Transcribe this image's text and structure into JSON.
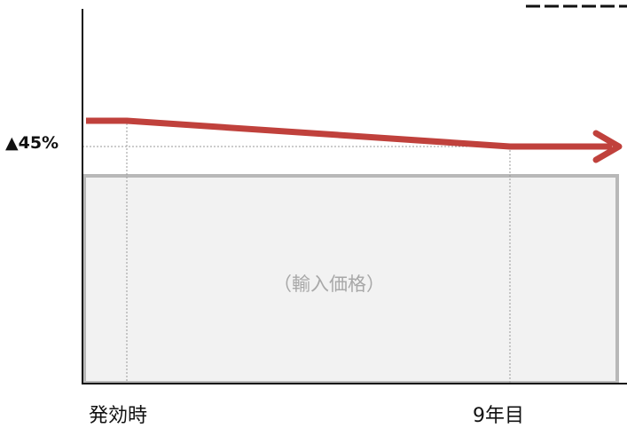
{
  "labels": {
    "y_marker": "▲45%",
    "x_start": "発効時",
    "x_end": "9年目",
    "box": "（輸入価格）"
  },
  "colors": {
    "trend_line": "#c0413c",
    "box_fill": "#f2f2f2",
    "box_border": "#b8b8b8",
    "axis": "#111111",
    "guide": "#9a9a9a"
  },
  "icons": {
    "trend_arrow": "arrow-right-icon"
  }
}
